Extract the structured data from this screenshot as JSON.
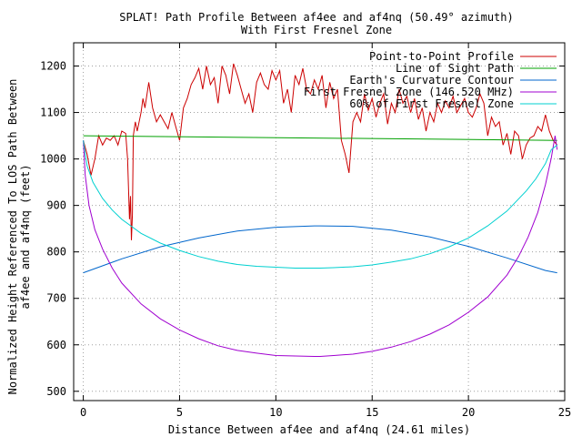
{
  "chart_data": {
    "type": "line",
    "title": "SPLAT! Path Profile Between af4ee and af4nq (50.49° azimuth)",
    "subtitle": "With First Fresnel Zone",
    "xlabel": "Distance Between af4ee and af4nq (24.61 miles)",
    "ylabel_line1": "Normalized Height Referenced To LOS Path Between",
    "ylabel_line2": "af4ee and af4nq (feet)",
    "xlim": [
      -0.5,
      25
    ],
    "ylim": [
      480,
      1250
    ],
    "x_ticks": [
      0,
      5,
      10,
      15,
      20,
      25
    ],
    "y_ticks": [
      500,
      600,
      700,
      800,
      900,
      1000,
      1100,
      1200
    ],
    "grid": true,
    "legend_position": "top-right",
    "series": [
      {
        "name": "Point-to-Point Profile",
        "color": "#cc0000",
        "x": [
          0.0,
          0.2,
          0.4,
          0.6,
          0.8,
          1.0,
          1.2,
          1.4,
          1.6,
          1.8,
          2.0,
          2.2,
          2.3,
          2.4,
          2.45,
          2.5,
          2.55,
          2.6,
          2.7,
          2.8,
          2.9,
          3.0,
          3.1,
          3.2,
          3.4,
          3.6,
          3.8,
          4.0,
          4.2,
          4.4,
          4.6,
          4.8,
          5.0,
          5.2,
          5.4,
          5.6,
          5.8,
          6.0,
          6.2,
          6.4,
          6.6,
          6.8,
          7.0,
          7.2,
          7.4,
          7.6,
          7.8,
          8.0,
          8.2,
          8.4,
          8.6,
          8.8,
          9.0,
          9.2,
          9.4,
          9.6,
          9.8,
          10.0,
          10.2,
          10.4,
          10.6,
          10.8,
          11.0,
          11.2,
          11.4,
          11.6,
          11.8,
          12.0,
          12.2,
          12.4,
          12.6,
          12.8,
          13.0,
          13.2,
          13.4,
          13.6,
          13.8,
          14.0,
          14.2,
          14.4,
          14.6,
          14.8,
          15.0,
          15.2,
          15.4,
          15.6,
          15.8,
          16.0,
          16.2,
          16.4,
          16.6,
          16.8,
          17.0,
          17.2,
          17.4,
          17.6,
          17.8,
          18.0,
          18.2,
          18.4,
          18.6,
          18.8,
          19.0,
          19.2,
          19.4,
          19.6,
          19.8,
          20.0,
          20.2,
          20.4,
          20.6,
          20.8,
          21.0,
          21.2,
          21.4,
          21.6,
          21.8,
          22.0,
          22.2,
          22.4,
          22.6,
          22.8,
          23.0,
          23.2,
          23.4,
          23.6,
          23.8,
          24.0,
          24.2,
          24.4,
          24.61
        ],
        "y": [
          1040,
          1010,
          965,
          1000,
          1050,
          1030,
          1045,
          1040,
          1050,
          1030,
          1060,
          1055,
          1000,
          870,
          920,
          825,
          880,
          1050,
          1080,
          1060,
          1080,
          1100,
          1130,
          1110,
          1165,
          1110,
          1080,
          1095,
          1080,
          1065,
          1100,
          1070,
          1040,
          1110,
          1130,
          1160,
          1175,
          1195,
          1150,
          1200,
          1160,
          1175,
          1120,
          1200,
          1180,
          1140,
          1205,
          1180,
          1150,
          1120,
          1140,
          1100,
          1165,
          1185,
          1160,
          1150,
          1190,
          1170,
          1190,
          1120,
          1150,
          1100,
          1180,
          1160,
          1195,
          1150,
          1140,
          1170,
          1150,
          1180,
          1110,
          1165,
          1130,
          1150,
          1040,
          1010,
          970,
          1080,
          1100,
          1080,
          1140,
          1105,
          1130,
          1090,
          1120,
          1140,
          1075,
          1120,
          1100,
          1150,
          1120,
          1135,
          1100,
          1130,
          1085,
          1110,
          1060,
          1100,
          1080,
          1120,
          1100,
          1125,
          1110,
          1135,
          1100,
          1115,
          1130,
          1100,
          1090,
          1110,
          1140,
          1120,
          1050,
          1090,
          1070,
          1080,
          1030,
          1055,
          1010,
          1060,
          1050,
          1000,
          1030,
          1045,
          1050,
          1070,
          1060,
          1095,
          1060,
          1040,
          1030
        ]
      },
      {
        "name": "Line of Sight Path",
        "color": "#00a000",
        "x": [
          0,
          24.61
        ],
        "y": [
          1050,
          1040
        ]
      },
      {
        "name": "Earth's Curvature Contour",
        "color": "#0066cc",
        "x": [
          0,
          2,
          4,
          6,
          8,
          10,
          12,
          12.3,
          14,
          16,
          18,
          20,
          22,
          24,
          24.61
        ],
        "y": [
          755,
          785,
          811,
          830,
          845,
          853,
          856,
          856,
          855,
          847,
          832,
          812,
          787,
          760,
          755
        ]
      },
      {
        "name": "First Fresnel Zone (146.520 MHz)",
        "color": "#a000d0",
        "x": [
          0,
          0.1,
          0.3,
          0.6,
          1.0,
          1.5,
          2.0,
          3.0,
          4.0,
          5.0,
          6.0,
          7.0,
          8.0,
          9.0,
          10.0,
          11.0,
          12.0,
          12.3,
          13.0,
          14.0,
          15.0,
          16.0,
          17.0,
          18.0,
          19.0,
          20.0,
          21.0,
          22.0,
          22.6,
          23.1,
          23.6,
          24.0,
          24.3,
          24.5,
          24.61
        ],
        "y": [
          1040,
          965,
          900,
          848,
          806,
          765,
          733,
          688,
          656,
          632,
          613,
          598,
          588,
          582,
          577,
          576,
          575,
          575,
          577,
          580,
          586,
          595,
          607,
          623,
          643,
          670,
          703,
          750,
          790,
          832,
          885,
          945,
          1002,
          1050,
          1020
        ]
      },
      {
        "name": "60% of First Fresnel Zone",
        "color": "#00d0d0",
        "x": [
          0,
          0.2,
          0.5,
          1.0,
          1.5,
          2.0,
          3.0,
          4.0,
          5.0,
          6.0,
          7.0,
          8.0,
          9.0,
          10.0,
          11.0,
          12.0,
          12.3,
          13.0,
          14.0,
          15.0,
          16.0,
          17.0,
          18.0,
          19.0,
          20.0,
          21.0,
          22.0,
          23.0,
          23.5,
          24.0,
          24.3,
          24.61
        ],
        "y": [
          1040,
          985,
          950,
          915,
          890,
          870,
          840,
          819,
          803,
          790,
          780,
          773,
          769,
          767,
          765,
          765,
          765,
          766,
          768,
          772,
          778,
          785,
          796,
          811,
          830,
          856,
          888,
          931,
          957,
          990,
          1020,
          1030
        ]
      }
    ]
  }
}
